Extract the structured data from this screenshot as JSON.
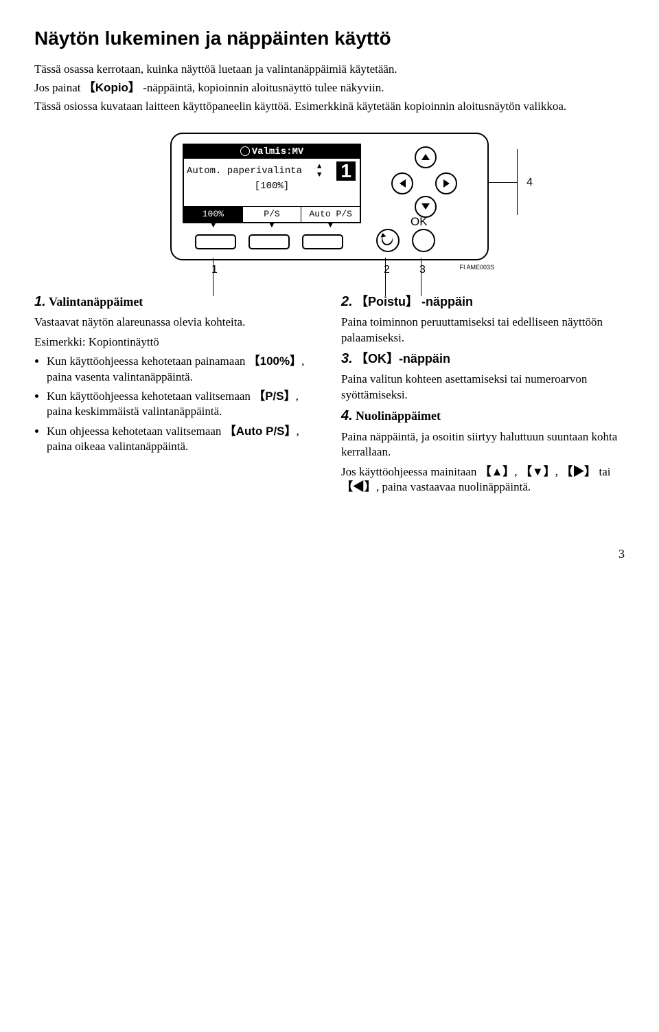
{
  "page": {
    "title": "Näytön lukeminen ja näppäinten käyttö",
    "intro1": "Tässä osassa kerrotaan, kuinka näyttöä luetaan ja valintanäppäimiä käytetään.",
    "intro2a": "Jos painat ",
    "intro2_key": "Kopio",
    "intro2b": " -näppäintä, kopioinnin aloitusnäyttö tulee näkyviin.",
    "intro3": "Tässä osiossa kuvataan laitteen käyttöpaneelin käyttöä. Esimerkkinä käytetään kopioinnin aloitusnäytön valikkoa.",
    "pageNumber": "3"
  },
  "panel": {
    "lcd_row1": "Valmis:MV",
    "lcd_row2": "Autom. paperivalinta",
    "lcd_row3": "[100%]",
    "big_number": "1",
    "tab1": "100%",
    "tab2": "P/S",
    "tab3": "Auto P/S",
    "ok_label": "OK",
    "label4": "4",
    "n1": "1",
    "n2": "2",
    "n3": "3",
    "figcode": "FI AME003S"
  },
  "items": {
    "i1": {
      "num": "1.",
      "title": "Valintanäppäimet",
      "p1": "Vastaavat näytön alareunassa olevia kohteita.",
      "p2": "Esimerkki: Kopiontinäyttö",
      "b1a": "Kun käyttöohjeessa kehotetaan painamaan ",
      "b1key": "100%",
      "b1b": ", paina vasenta valintanäppäintä.",
      "b2a": "Kun käyttöohjeessa kehotetaan valitsemaan ",
      "b2key": "P/S",
      "b2b": ", paina keskimmäistä valintanäppäintä.",
      "b3a": "Kun ohjeessa kehotetaan valitsemaan ",
      "b3key": "Auto P/S",
      "b3b": ", paina oikeaa valintanäppäintä."
    },
    "i2": {
      "num": "2.",
      "key": "Poistu",
      "suffix": " -näppäin",
      "p1": "Paina toiminnon peruuttamiseksi tai edelliseen näyttöön palaamiseksi."
    },
    "i3": {
      "num": "3.",
      "key": "OK",
      "suffix": "-näppäin",
      "p1": "Paina valitun kohteen asettamiseksi tai numeroarvon syöttämiseksi."
    },
    "i4": {
      "num": "4.",
      "title": "Nuolinäppäimet",
      "p1": "Paina näppäintä, ja osoitin siirtyy haluttuun suuntaan kohta kerrallaan.",
      "p2a": "Jos käyttöohjeessa mainitaan ",
      "up": "▲",
      "down": "▼",
      "right": "▶",
      "left": "◀",
      "p2b": ", paina vastaavaa nuolinäppäintä."
    }
  }
}
